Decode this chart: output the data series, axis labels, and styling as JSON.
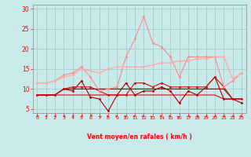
{
  "x": [
    0,
    1,
    2,
    3,
    4,
    5,
    6,
    7,
    8,
    9,
    10,
    11,
    12,
    13,
    14,
    15,
    16,
    17,
    18,
    19,
    20,
    21,
    22,
    23
  ],
  "line_light_pink": [
    11.5,
    11.5,
    12.0,
    13.0,
    13.5,
    15.0,
    14.5,
    14.0,
    15.0,
    15.5,
    15.5,
    15.5,
    15.5,
    16.0,
    16.5,
    16.5,
    17.0,
    17.0,
    17.5,
    17.5,
    18.0,
    18.0,
    12.5,
    14.0
  ],
  "line_medium_pink": [
    11.5,
    11.5,
    12.0,
    13.5,
    14.0,
    15.5,
    13.0,
    9.5,
    10.0,
    10.5,
    18.0,
    22.5,
    28.0,
    21.5,
    20.5,
    18.0,
    13.0,
    18.0,
    18.0,
    18.0,
    18.0,
    10.5,
    12.0,
    14.0
  ],
  "line_dark_red1": [
    8.5,
    8.5,
    8.5,
    10.0,
    10.5,
    10.5,
    10.5,
    9.5,
    8.5,
    8.5,
    8.5,
    11.5,
    11.5,
    10.5,
    11.5,
    10.5,
    10.5,
    10.5,
    10.5,
    10.5,
    13.0,
    10.5,
    7.5,
    7.5
  ],
  "line_dark_red2": [
    8.5,
    8.5,
    8.5,
    10.0,
    9.5,
    12.0,
    8.0,
    7.5,
    4.5,
    8.5,
    11.5,
    8.5,
    9.5,
    9.5,
    10.5,
    9.5,
    6.5,
    9.5,
    8.5,
    10.5,
    13.0,
    7.5,
    7.5,
    6.5
  ],
  "line_red_flat1": [
    8.5,
    8.5,
    8.5,
    8.5,
    8.5,
    8.5,
    8.5,
    8.5,
    8.5,
    8.5,
    8.5,
    8.5,
    8.5,
    8.5,
    8.5,
    8.5,
    8.5,
    8.5,
    8.5,
    8.5,
    8.5,
    7.5,
    7.5,
    7.5
  ],
  "line_red_flat2": [
    8.5,
    8.5,
    8.5,
    10.0,
    10.0,
    10.0,
    10.0,
    10.0,
    10.0,
    10.0,
    10.0,
    10.0,
    10.0,
    10.0,
    10.0,
    10.0,
    10.0,
    10.0,
    10.0,
    10.0,
    10.0,
    10.0,
    7.5,
    7.5
  ],
  "bg_color": "#c8eaea",
  "grid_color": "#a0c8c8",
  "xlabel": "Vent moyen/en rafales ( km/h )",
  "ylim": [
    4,
    31
  ],
  "xlim": [
    -0.5,
    23.5
  ],
  "yticks": [
    5,
    10,
    15,
    20,
    25,
    30
  ],
  "xticks": [
    0,
    1,
    2,
    3,
    4,
    5,
    6,
    7,
    8,
    9,
    10,
    11,
    12,
    13,
    14,
    15,
    16,
    17,
    18,
    19,
    20,
    21,
    22,
    23
  ],
  "color_light_pink": "#ffaaaa",
  "color_medium_pink": "#ff8888",
  "color_dark_red1": "#cc1111",
  "color_dark_red2": "#aa0000",
  "color_red_flat1": "#cc1111",
  "color_red_flat2": "#880000",
  "wind_dirs": [
    270,
    270,
    270,
    270,
    270,
    270,
    315,
    225,
    90,
    90,
    90,
    90,
    90,
    135,
    90,
    90,
    135,
    270,
    270,
    270,
    270,
    270,
    270,
    90
  ]
}
